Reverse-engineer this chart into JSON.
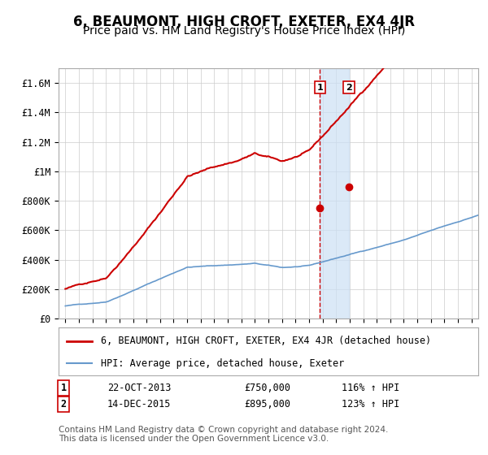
{
  "title": "6, BEAUMONT, HIGH CROFT, EXETER, EX4 4JR",
  "subtitle": "Price paid vs. HM Land Registry's House Price Index (HPI)",
  "ylim": [
    0,
    1700000
  ],
  "yticks": [
    0,
    200000,
    400000,
    600000,
    800000,
    1000000,
    1200000,
    1400000,
    1600000
  ],
  "ytick_labels": [
    "£0",
    "£200K",
    "£400K",
    "£600K",
    "£800K",
    "£1M",
    "£1.2M",
    "£1.4M",
    "£1.6M"
  ],
  "year_start": 1995,
  "year_end": 2025,
  "red_line_color": "#cc0000",
  "blue_line_color": "#6699cc",
  "marker1_date_str": "22-OCT-2013",
  "marker1_year": 2013.8,
  "marker1_price": 750000,
  "marker1_pct": "116%",
  "marker2_date_str": "14-DEC-2015",
  "marker2_year": 2015.95,
  "marker2_price": 895000,
  "marker2_pct": "123%",
  "vline_color": "#cc0000",
  "shade_color": "#cce0f5",
  "legend_red_label": "6, BEAUMONT, HIGH CROFT, EXETER, EX4 4JR (detached house)",
  "legend_blue_label": "HPI: Average price, detached house, Exeter",
  "footnote": "Contains HM Land Registry data © Crown copyright and database right 2024.\nThis data is licensed under the Open Government Licence v3.0.",
  "background_color": "#ffffff",
  "grid_color": "#cccccc",
  "title_fontsize": 12,
  "subtitle_fontsize": 10,
  "tick_fontsize": 8.5
}
